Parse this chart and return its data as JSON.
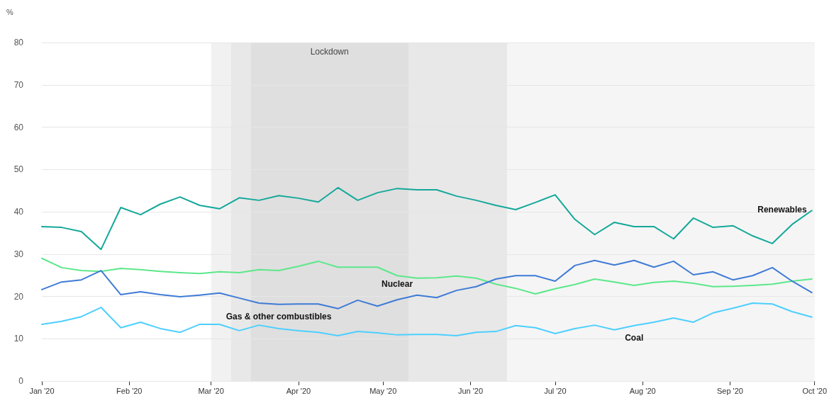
{
  "chart_data": {
    "type": "line",
    "ylabel": "%",
    "x": [
      "2020-01-01",
      "2020-01-08",
      "2020-01-15",
      "2020-01-22",
      "2020-01-29",
      "2020-02-05",
      "2020-02-12",
      "2020-02-19",
      "2020-02-26",
      "2020-03-04",
      "2020-03-11",
      "2020-03-18",
      "2020-03-25",
      "2020-04-01",
      "2020-04-08",
      "2020-04-15",
      "2020-04-22",
      "2020-04-29",
      "2020-05-06",
      "2020-05-13",
      "2020-05-20",
      "2020-05-27",
      "2020-06-03",
      "2020-06-10",
      "2020-06-17",
      "2020-06-24",
      "2020-07-01",
      "2020-07-08",
      "2020-07-15",
      "2020-07-22",
      "2020-07-29",
      "2020-08-05",
      "2020-08-12",
      "2020-08-19",
      "2020-08-26",
      "2020-09-02",
      "2020-09-09",
      "2020-09-16",
      "2020-09-23",
      "2020-09-30"
    ],
    "series": [
      {
        "name": "Renewables",
        "color": "#14a89a",
        "values": [
          36.5,
          36.3,
          35.3,
          31.1,
          41.0,
          39.3,
          41.8,
          43.5,
          41.5,
          40.7,
          43.3,
          42.7,
          43.8,
          43.2,
          42.3,
          45.7,
          42.7,
          44.5,
          45.5,
          45.2,
          45.2,
          43.7,
          42.7,
          41.5,
          40.5,
          42.2,
          44.0,
          38.2,
          34.6,
          37.5,
          36.5,
          36.5,
          33.6,
          38.5,
          36.3,
          36.7,
          34.3,
          32.5,
          37.0,
          40.3
        ]
      },
      {
        "name": "Nuclear",
        "color": "#5ce88a",
        "values": [
          29.0,
          26.8,
          26.1,
          25.9,
          26.6,
          26.3,
          25.9,
          25.6,
          25.4,
          25.8,
          25.6,
          26.3,
          26.1,
          27.1,
          28.3,
          26.9,
          26.9,
          26.9,
          24.9,
          24.3,
          24.4,
          24.8,
          24.3,
          22.9,
          21.9,
          20.6,
          21.8,
          22.8,
          24.1,
          23.4,
          22.6,
          23.3,
          23.6,
          23.1,
          22.3,
          22.4,
          22.6,
          22.9,
          23.6,
          24.1
        ]
      },
      {
        "name": "Gas & other combustibles",
        "color": "#3f7bd6",
        "values": [
          21.6,
          23.4,
          23.9,
          26.1,
          20.4,
          21.1,
          20.4,
          19.9,
          20.3,
          20.8,
          19.6,
          18.4,
          18.1,
          18.2,
          18.2,
          17.1,
          19.1,
          17.7,
          19.2,
          20.3,
          19.7,
          21.4,
          22.3,
          24.1,
          24.9,
          24.9,
          23.6,
          27.3,
          28.5,
          27.4,
          28.5,
          26.9,
          28.3,
          25.1,
          25.8,
          23.9,
          24.9,
          26.8,
          23.6,
          20.9
        ]
      },
      {
        "name": "Coal",
        "color": "#4dcfff",
        "values": [
          13.4,
          14.1,
          15.2,
          17.4,
          12.6,
          13.9,
          12.4,
          11.5,
          13.4,
          13.4,
          11.9,
          13.2,
          12.4,
          11.9,
          11.5,
          10.7,
          11.7,
          11.4,
          10.9,
          11.0,
          11.0,
          10.7,
          11.5,
          11.7,
          13.1,
          12.6,
          11.2,
          12.4,
          13.2,
          12.1,
          13.1,
          13.9,
          14.9,
          13.9,
          16.1,
          17.2,
          18.4,
          18.2,
          16.4,
          15.1
        ]
      }
    ],
    "xlim": [
      "2020-01-01",
      "2020-10-01"
    ],
    "xticks": [
      {
        "value": "2020-01-01",
        "label": "Jan '20"
      },
      {
        "value": "2020-02-01",
        "label": "Feb '20"
      },
      {
        "value": "2020-03-01",
        "label": "Mar '20"
      },
      {
        "value": "2020-04-01",
        "label": "Apr '20"
      },
      {
        "value": "2020-05-01",
        "label": "May '20"
      },
      {
        "value": "2020-06-01",
        "label": "Jun '20"
      },
      {
        "value": "2020-07-01",
        "label": "Jul '20"
      },
      {
        "value": "2020-08-01",
        "label": "Aug '20"
      },
      {
        "value": "2020-09-01",
        "label": "Sep '20"
      },
      {
        "value": "2020-10-01",
        "label": "Oct '20"
      }
    ],
    "ylim": [
      0,
      80
    ],
    "yticks": [
      0,
      10,
      20,
      30,
      40,
      50,
      60,
      70,
      80
    ],
    "bands": [
      {
        "axis": "x",
        "from": "2020-03-01",
        "to": "2020-03-08",
        "label": null,
        "color": "#f1f1f1"
      },
      {
        "axis": "x",
        "from": "2020-03-08",
        "to": "2020-03-15",
        "label": null,
        "color": "#e8e8e8"
      },
      {
        "axis": "x",
        "from": "2020-03-15",
        "to": "2020-05-10",
        "label": "Lockdown",
        "color": "#dfdfdf"
      },
      {
        "axis": "x",
        "from": "2020-05-10",
        "to": "2020-06-14",
        "label": null,
        "color": "#e8e8e8"
      },
      {
        "axis": "x",
        "from": "2020-06-14",
        "to": "2020-10-01",
        "label": null,
        "color": "#f5f5f5"
      }
    ],
    "grid": "y",
    "legend": false,
    "marker": "none",
    "line_style": "solid"
  }
}
